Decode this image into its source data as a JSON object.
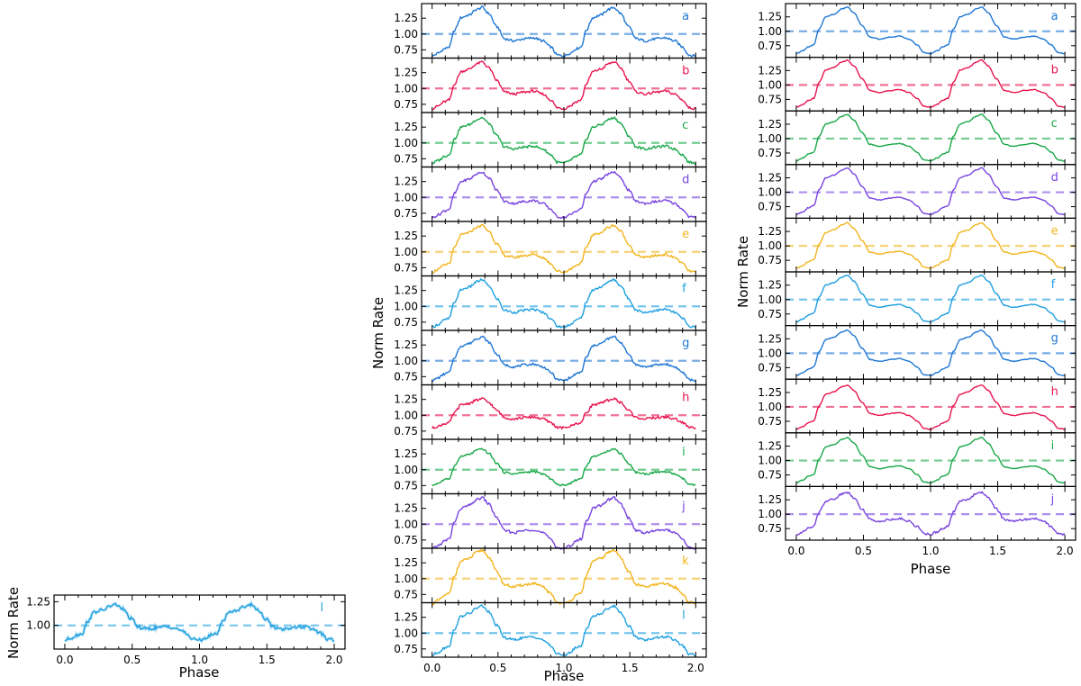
{
  "colors": {
    "a": "#1f77d4",
    "b": "#e8134f",
    "c": "#18a848",
    "d": "#7844e0",
    "e": "#f2b41c",
    "f": "#1ea0e0",
    "g": "#1f77d4",
    "h": "#e8134f",
    "i": "#18a848",
    "j": "#7844e0",
    "k": "#f2b41c",
    "l": "#1ea0e0"
  },
  "axis_labels": {
    "x": "Phase",
    "y": "Norm Rate"
  },
  "chart_data": [
    {
      "id": "left-single",
      "type": "line",
      "xlabel": "Phase",
      "ylabel": "Norm Rate",
      "xlim": [
        -0.08,
        2.08
      ],
      "ylim": [
        0.75,
        1.32
      ],
      "xticks": [
        "0.0",
        "0.5",
        "1.0",
        "1.5",
        "2.0"
      ],
      "yticks": [
        "1.00",
        "1.25"
      ],
      "reference_line": 1.0,
      "error_bars": true,
      "panels": [
        {
          "label": "l",
          "peak": 1.22,
          "trough": 0.83,
          "phase": [
            0.0,
            0.1,
            0.2,
            0.3,
            0.4,
            0.5,
            0.6,
            0.7,
            0.8,
            0.9,
            1.0
          ],
          "rate": [
            0.83,
            0.92,
            1.1,
            1.18,
            1.22,
            1.02,
            0.94,
            0.92,
            0.93,
            0.9,
            0.83
          ]
        }
      ]
    },
    {
      "id": "middle-stack",
      "type": "line",
      "xlabel": "Phase",
      "ylabel": "Norm Rate",
      "xlim": [
        -0.08,
        2.08
      ],
      "ylim": [
        0.62,
        1.48
      ],
      "xticks": [
        "0.0",
        "0.5",
        "1.0",
        "1.5",
        "2.0"
      ],
      "yticks": [
        "0.75",
        "1.00",
        "1.25"
      ],
      "reference_line": 1.0,
      "panels": [
        {
          "label": "a",
          "peak": 1.42,
          "trough": 0.62
        },
        {
          "label": "b",
          "peak": 1.42,
          "trough": 0.65
        },
        {
          "label": "c",
          "peak": 1.4,
          "trough": 0.65
        },
        {
          "label": "d",
          "peak": 1.4,
          "trough": 0.65
        },
        {
          "label": "e",
          "peak": 1.42,
          "trough": 0.65
        },
        {
          "label": "f",
          "peak": 1.42,
          "trough": 0.64
        },
        {
          "label": "g",
          "peak": 1.38,
          "trough": 0.66
        },
        {
          "label": "h",
          "peak": 1.26,
          "trough": 0.78
        },
        {
          "label": "i",
          "peak": 1.33,
          "trough": 0.73
        },
        {
          "label": "j",
          "peak": 1.42,
          "trough": 0.58
        },
        {
          "label": "k",
          "peak": 1.45,
          "trough": 0.57
        },
        {
          "label": "l",
          "peak": 1.43,
          "trough": 0.62
        }
      ]
    },
    {
      "id": "right-stack",
      "type": "line",
      "xlabel": "Phase",
      "ylabel": "Norm Rate",
      "xlim": [
        -0.08,
        2.08
      ],
      "ylim": [
        0.55,
        1.48
      ],
      "xticks": [
        "0.0",
        "0.5",
        "1.0",
        "1.5",
        "2.0"
      ],
      "yticks": [
        "0.75",
        "1.00",
        "1.25"
      ],
      "reference_line": 1.0,
      "panels": [
        {
          "label": "a",
          "peak": 1.42,
          "trough": 0.58
        },
        {
          "label": "b",
          "peak": 1.43,
          "trough": 0.58
        },
        {
          "label": "c",
          "peak": 1.42,
          "trough": 0.58
        },
        {
          "label": "d",
          "peak": 1.42,
          "trough": 0.58
        },
        {
          "label": "e",
          "peak": 1.4,
          "trough": 0.58
        },
        {
          "label": "f",
          "peak": 1.42,
          "trough": 0.58
        },
        {
          "label": "g",
          "peak": 1.4,
          "trough": 0.58
        },
        {
          "label": "h",
          "peak": 1.38,
          "trough": 0.58
        },
        {
          "label": "i",
          "peak": 1.4,
          "trough": 0.58
        },
        {
          "label": "j",
          "peak": 1.38,
          "trough": 0.62
        }
      ]
    }
  ]
}
